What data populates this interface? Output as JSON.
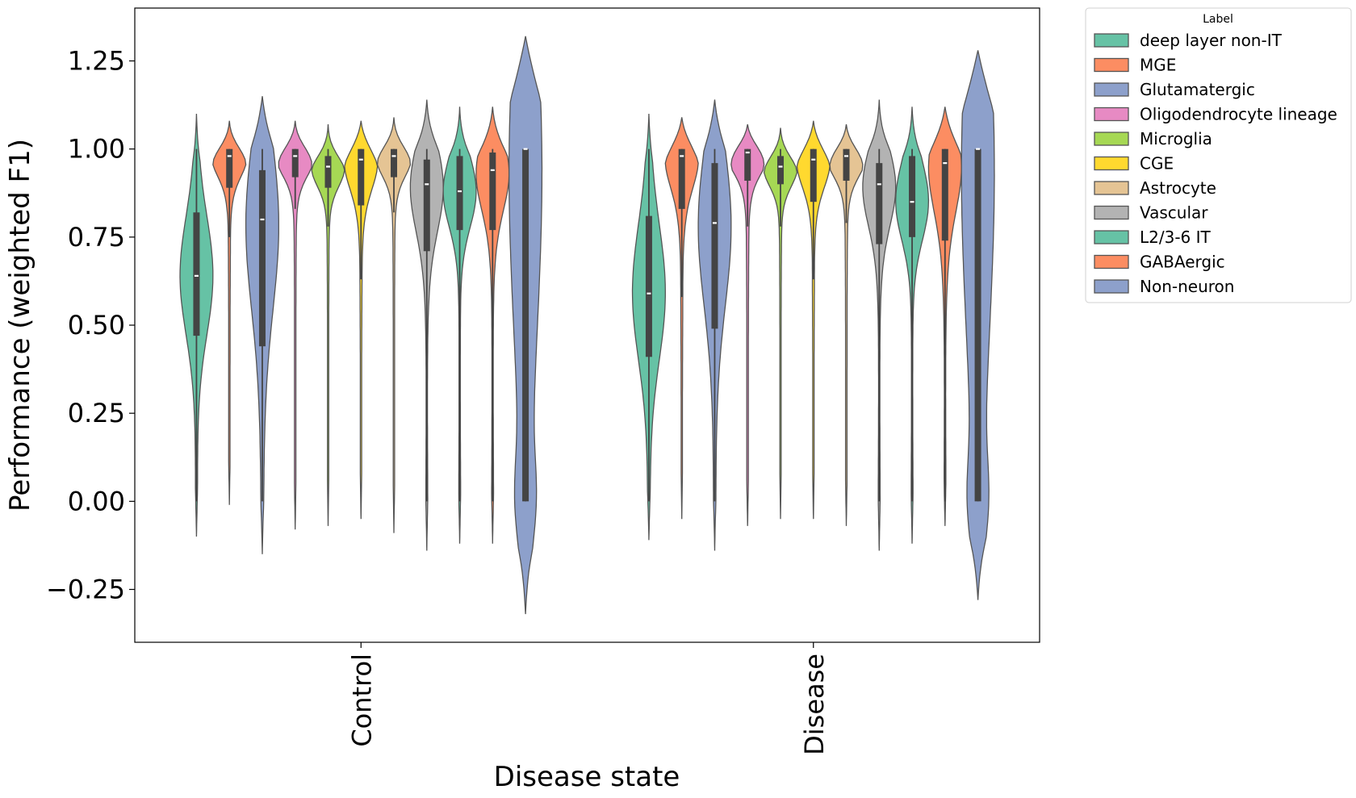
{
  "chart_data": {
    "type": "violin",
    "xlabel": "Disease state",
    "ylabel": "Performance (weighted F1)",
    "ylim": [
      -0.4,
      1.4
    ],
    "yticks": [
      "−0.25",
      "0.00",
      "0.25",
      "0.50",
      "0.75",
      "1.00",
      "1.25"
    ],
    "ytick_values": [
      -0.25,
      0.0,
      0.25,
      0.5,
      0.75,
      1.0,
      1.25
    ],
    "categories": [
      "Control",
      "Disease"
    ],
    "legend": {
      "title": "Label",
      "placement": "outside right, top",
      "entries": [
        "deep layer non-IT",
        "MGE",
        "Glutamatergic",
        "Oligodendrocyte lineage",
        "Microglia",
        "CGE",
        "Astrocyte",
        "Vascular",
        "L2/3-6 IT",
        "GABAergic",
        "Non-neuron"
      ]
    },
    "series": [
      {
        "name": "deep layer non-IT",
        "color": "#66c2a5",
        "values": [
          {
            "min": -0.1,
            "max": 1.1,
            "q1": 0.47,
            "median": 0.64,
            "q3": 0.82,
            "whisker_low": 0.0,
            "whisker_high": 1.0
          },
          {
            "min": -0.11,
            "max": 1.1,
            "q1": 0.41,
            "median": 0.59,
            "q3": 0.81,
            "whisker_low": 0.0,
            "whisker_high": 1.0
          }
        ]
      },
      {
        "name": "MGE",
        "color": "#fc8d62",
        "values": [
          {
            "min": -0.01,
            "max": 1.08,
            "q1": 0.89,
            "median": 0.98,
            "q3": 1.0,
            "whisker_low": 0.75,
            "whisker_high": 1.0
          },
          {
            "min": -0.05,
            "max": 1.09,
            "q1": 0.83,
            "median": 0.98,
            "q3": 1.0,
            "whisker_low": 0.58,
            "whisker_high": 1.0
          }
        ]
      },
      {
        "name": "Glutamatergic",
        "color": "#8da0cb",
        "values": [
          {
            "min": -0.15,
            "max": 1.15,
            "q1": 0.44,
            "median": 0.8,
            "q3": 0.94,
            "whisker_low": 0.0,
            "whisker_high": 1.0
          },
          {
            "min": -0.14,
            "max": 1.14,
            "q1": 0.49,
            "median": 0.79,
            "q3": 0.96,
            "whisker_low": 0.0,
            "whisker_high": 1.0
          }
        ]
      },
      {
        "name": "Oligodendrocyte lineage",
        "color": "#e78ac3",
        "values": [
          {
            "min": -0.08,
            "max": 1.08,
            "q1": 0.92,
            "median": 0.98,
            "q3": 1.0,
            "whisker_low": 0.83,
            "whisker_high": 1.0
          },
          {
            "min": -0.07,
            "max": 1.07,
            "q1": 0.91,
            "median": 0.99,
            "q3": 1.0,
            "whisker_low": 0.78,
            "whisker_high": 1.0
          }
        ]
      },
      {
        "name": "Microglia",
        "color": "#a6d854",
        "values": [
          {
            "min": -0.07,
            "max": 1.07,
            "q1": 0.89,
            "median": 0.95,
            "q3": 0.98,
            "whisker_low": 0.78,
            "whisker_high": 1.0
          },
          {
            "min": -0.05,
            "max": 1.06,
            "q1": 0.9,
            "median": 0.95,
            "q3": 0.98,
            "whisker_low": 0.78,
            "whisker_high": 1.0
          }
        ]
      },
      {
        "name": "CGE",
        "color": "#ffd92f",
        "values": [
          {
            "min": -0.05,
            "max": 1.08,
            "q1": 0.84,
            "median": 0.97,
            "q3": 1.0,
            "whisker_low": 0.63,
            "whisker_high": 1.0
          },
          {
            "min": -0.05,
            "max": 1.08,
            "q1": 0.85,
            "median": 0.97,
            "q3": 1.0,
            "whisker_low": 0.63,
            "whisker_high": 1.0
          }
        ]
      },
      {
        "name": "Astrocyte",
        "color": "#e5c494",
        "values": [
          {
            "min": -0.09,
            "max": 1.09,
            "q1": 0.92,
            "median": 0.98,
            "q3": 1.0,
            "whisker_low": 0.82,
            "whisker_high": 1.0
          },
          {
            "min": -0.07,
            "max": 1.07,
            "q1": 0.91,
            "median": 0.98,
            "q3": 1.0,
            "whisker_low": 0.79,
            "whisker_high": 1.0
          }
        ]
      },
      {
        "name": "Vascular",
        "color": "#b3b3b3",
        "values": [
          {
            "min": -0.14,
            "max": 1.14,
            "q1": 0.71,
            "median": 0.9,
            "q3": 0.97,
            "whisker_low": 0.0,
            "whisker_high": 1.0
          },
          {
            "min": -0.14,
            "max": 1.14,
            "q1": 0.73,
            "median": 0.9,
            "q3": 0.96,
            "whisker_low": 0.0,
            "whisker_high": 1.0
          }
        ]
      },
      {
        "name": "L2/3-6 IT",
        "color": "#66c2a5",
        "values": [
          {
            "min": -0.12,
            "max": 1.12,
            "q1": 0.77,
            "median": 0.88,
            "q3": 0.98,
            "whisker_low": 0.0,
            "whisker_high": 1.0
          },
          {
            "min": -0.12,
            "max": 1.12,
            "q1": 0.75,
            "median": 0.85,
            "q3": 0.98,
            "whisker_low": 0.0,
            "whisker_high": 1.0
          }
        ]
      },
      {
        "name": "GABAergic",
        "color": "#fc8d62",
        "values": [
          {
            "min": -0.12,
            "max": 1.12,
            "q1": 0.77,
            "median": 0.94,
            "q3": 0.99,
            "whisker_low": 0.0,
            "whisker_high": 1.0
          },
          {
            "min": -0.07,
            "max": 1.12,
            "q1": 0.74,
            "median": 0.96,
            "q3": 1.0,
            "whisker_low": 0.0,
            "whisker_high": 1.0
          }
        ]
      },
      {
        "name": "Non-neuron",
        "color": "#8da0cb",
        "values": [
          {
            "min": -0.32,
            "max": 1.32,
            "q1": 0.0,
            "median": 1.0,
            "q3": 1.0,
            "whisker_low": 0.0,
            "whisker_high": 1.0
          },
          {
            "min": -0.28,
            "max": 1.28,
            "q1": 0.0,
            "median": 1.0,
            "q3": 1.0,
            "whisker_low": 0.0,
            "whisker_high": 1.0
          }
        ]
      }
    ]
  }
}
